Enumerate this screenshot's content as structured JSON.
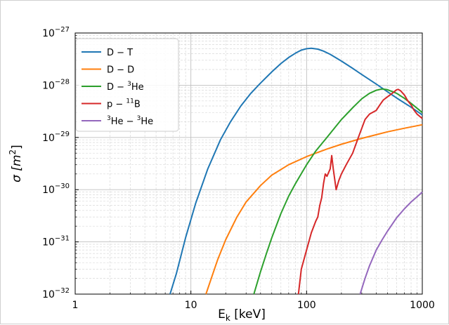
{
  "chart_data": {
    "type": "line",
    "xlabel": "E",
    "xlabel_sub": "k",
    "xlabel_unit": " [keV]",
    "ylabel": "σ [m",
    "ylabel_sup": "2",
    "ylabel_end": "]",
    "xscale": "log",
    "yscale": "log",
    "xlim": [
      1,
      1000
    ],
    "ylim": [
      1e-32,
      1e-27
    ],
    "grid": true,
    "legend_position": "top-left",
    "x_ticks": [
      {
        "value": 1,
        "label": "1"
      },
      {
        "value": 10,
        "label": "10"
      },
      {
        "value": 100,
        "label": "100"
      },
      {
        "value": 1000,
        "label": "1000"
      }
    ],
    "y_ticks": [
      {
        "value": 1e-32,
        "base": "10",
        "exp": "−32"
      },
      {
        "value": 1e-31,
        "base": "10",
        "exp": "−31"
      },
      {
        "value": 1e-30,
        "base": "10",
        "exp": "−30"
      },
      {
        "value": 1e-29,
        "base": "10",
        "exp": "−29"
      },
      {
        "value": 1e-28,
        "base": "10",
        "exp": "−28"
      },
      {
        "value": 1e-27,
        "base": "10",
        "exp": "−27"
      }
    ],
    "series": [
      {
        "name": "D − T",
        "label_parts": [
          {
            "t": "D − T"
          }
        ],
        "color": "#1f77b4",
        "x": [
          6.6,
          7.5,
          9,
          11,
          14,
          18,
          22,
          27,
          33,
          40,
          50,
          60,
          70,
          80,
          90,
          100,
          110,
          125,
          140,
          160,
          200,
          250,
          300,
          400,
          500,
          600,
          800,
          1000
        ],
        "y": [
          1e-32,
          2.5e-32,
          1.2e-31,
          5.5e-31,
          2.5e-30,
          9e-30,
          2e-29,
          4e-29,
          7e-29,
          1.1e-28,
          1.8e-28,
          2.6e-28,
          3.4e-28,
          4.1e-28,
          4.7e-28,
          5e-28,
          5.1e-28,
          4.9e-28,
          4.5e-28,
          3.9e-28,
          2.9e-28,
          2.1e-28,
          1.6e-28,
          1.05e-28,
          7.5e-29,
          5.7e-29,
          3.8e-29,
          2.7e-29
        ]
      },
      {
        "name": "D − D",
        "label_parts": [
          {
            "t": "D − D"
          }
        ],
        "color": "#ff7f0e",
        "x": [
          13.5,
          15,
          17,
          20,
          25,
          30,
          40,
          50,
          70,
          100,
          150,
          200,
          300,
          400,
          500,
          700,
          1000
        ],
        "y": [
          1e-32,
          2e-32,
          4.5e-32,
          1.1e-31,
          3e-31,
          5.8e-31,
          1.2e-30,
          1.9e-30,
          3e-30,
          4.3e-30,
          6e-30,
          7.4e-30,
          9.6e-30,
          1.13e-29,
          1.28e-29,
          1.5e-29,
          1.75e-29
        ]
      },
      {
        "name": "D − ³He",
        "label_parts": [
          {
            "t": "D − "
          },
          {
            "t": "3",
            "sup": true
          },
          {
            "t": "He"
          }
        ],
        "color": "#2ca02c",
        "x": [
          35,
          40,
          45,
          50,
          60,
          70,
          80,
          100,
          120,
          150,
          200,
          250,
          300,
          350,
          400,
          450,
          500,
          600,
          700,
          800,
          1000
        ],
        "y": [
          1e-32,
          2.7e-32,
          6e-32,
          1.2e-31,
          3.5e-31,
          7.5e-31,
          1.3e-30,
          3e-30,
          5.5e-30,
          1e-29,
          2.2e-29,
          3.7e-29,
          5.5e-29,
          7e-29,
          8e-29,
          8.5e-29,
          8.2e-29,
          7e-29,
          5.6e-29,
          4.5e-29,
          3e-29
        ]
      },
      {
        "name": "p − ¹¹B",
        "label_parts": [
          {
            "t": "p − "
          },
          {
            "t": "11",
            "sup": true
          },
          {
            "t": "B"
          }
        ],
        "color": "#d62728",
        "x": [
          85,
          90,
          100,
          110,
          120,
          125,
          130,
          135,
          140,
          145,
          150,
          160,
          165,
          170,
          180,
          190,
          200,
          220,
          250,
          280,
          300,
          320,
          350,
          400,
          430,
          460,
          500,
          550,
          600,
          620,
          650,
          700,
          750,
          800,
          850,
          900,
          1000
        ],
        "y": [
          1e-32,
          3e-32,
          7e-32,
          1.5e-31,
          2.5e-31,
          3e-31,
          5e-31,
          7e-31,
          1.3e-30,
          2e-30,
          1.8e-30,
          2.5e-30,
          4.5e-30,
          2.5e-30,
          1e-30,
          1.5e-30,
          2e-30,
          3e-30,
          5e-30,
          1e-29,
          1.5e-29,
          2.2e-29,
          2.8e-29,
          3.3e-29,
          4.2e-29,
          5.2e-29,
          6e-29,
          7e-29,
          8.2e-29,
          8.3e-29,
          7.8e-29,
          6.5e-29,
          5e-29,
          4.2e-29,
          3.3e-29,
          2.8e-29,
          2.3e-29
        ]
      },
      {
        "name": "³He − ³He",
        "label_parts": [
          {
            "t": "3",
            "sup": true
          },
          {
            "t": "He − "
          },
          {
            "t": "3",
            "sup": true
          },
          {
            "t": "He"
          }
        ],
        "color": "#9467bd",
        "x": [
          290,
          320,
          350,
          400,
          450,
          500,
          600,
          700,
          800,
          900,
          1000
        ],
        "y": [
          1e-32,
          2e-32,
          3.5e-32,
          7e-32,
          1.1e-31,
          1.6e-31,
          2.9e-31,
          4.3e-31,
          5.8e-31,
          7.3e-31,
          9e-31
        ]
      }
    ]
  }
}
